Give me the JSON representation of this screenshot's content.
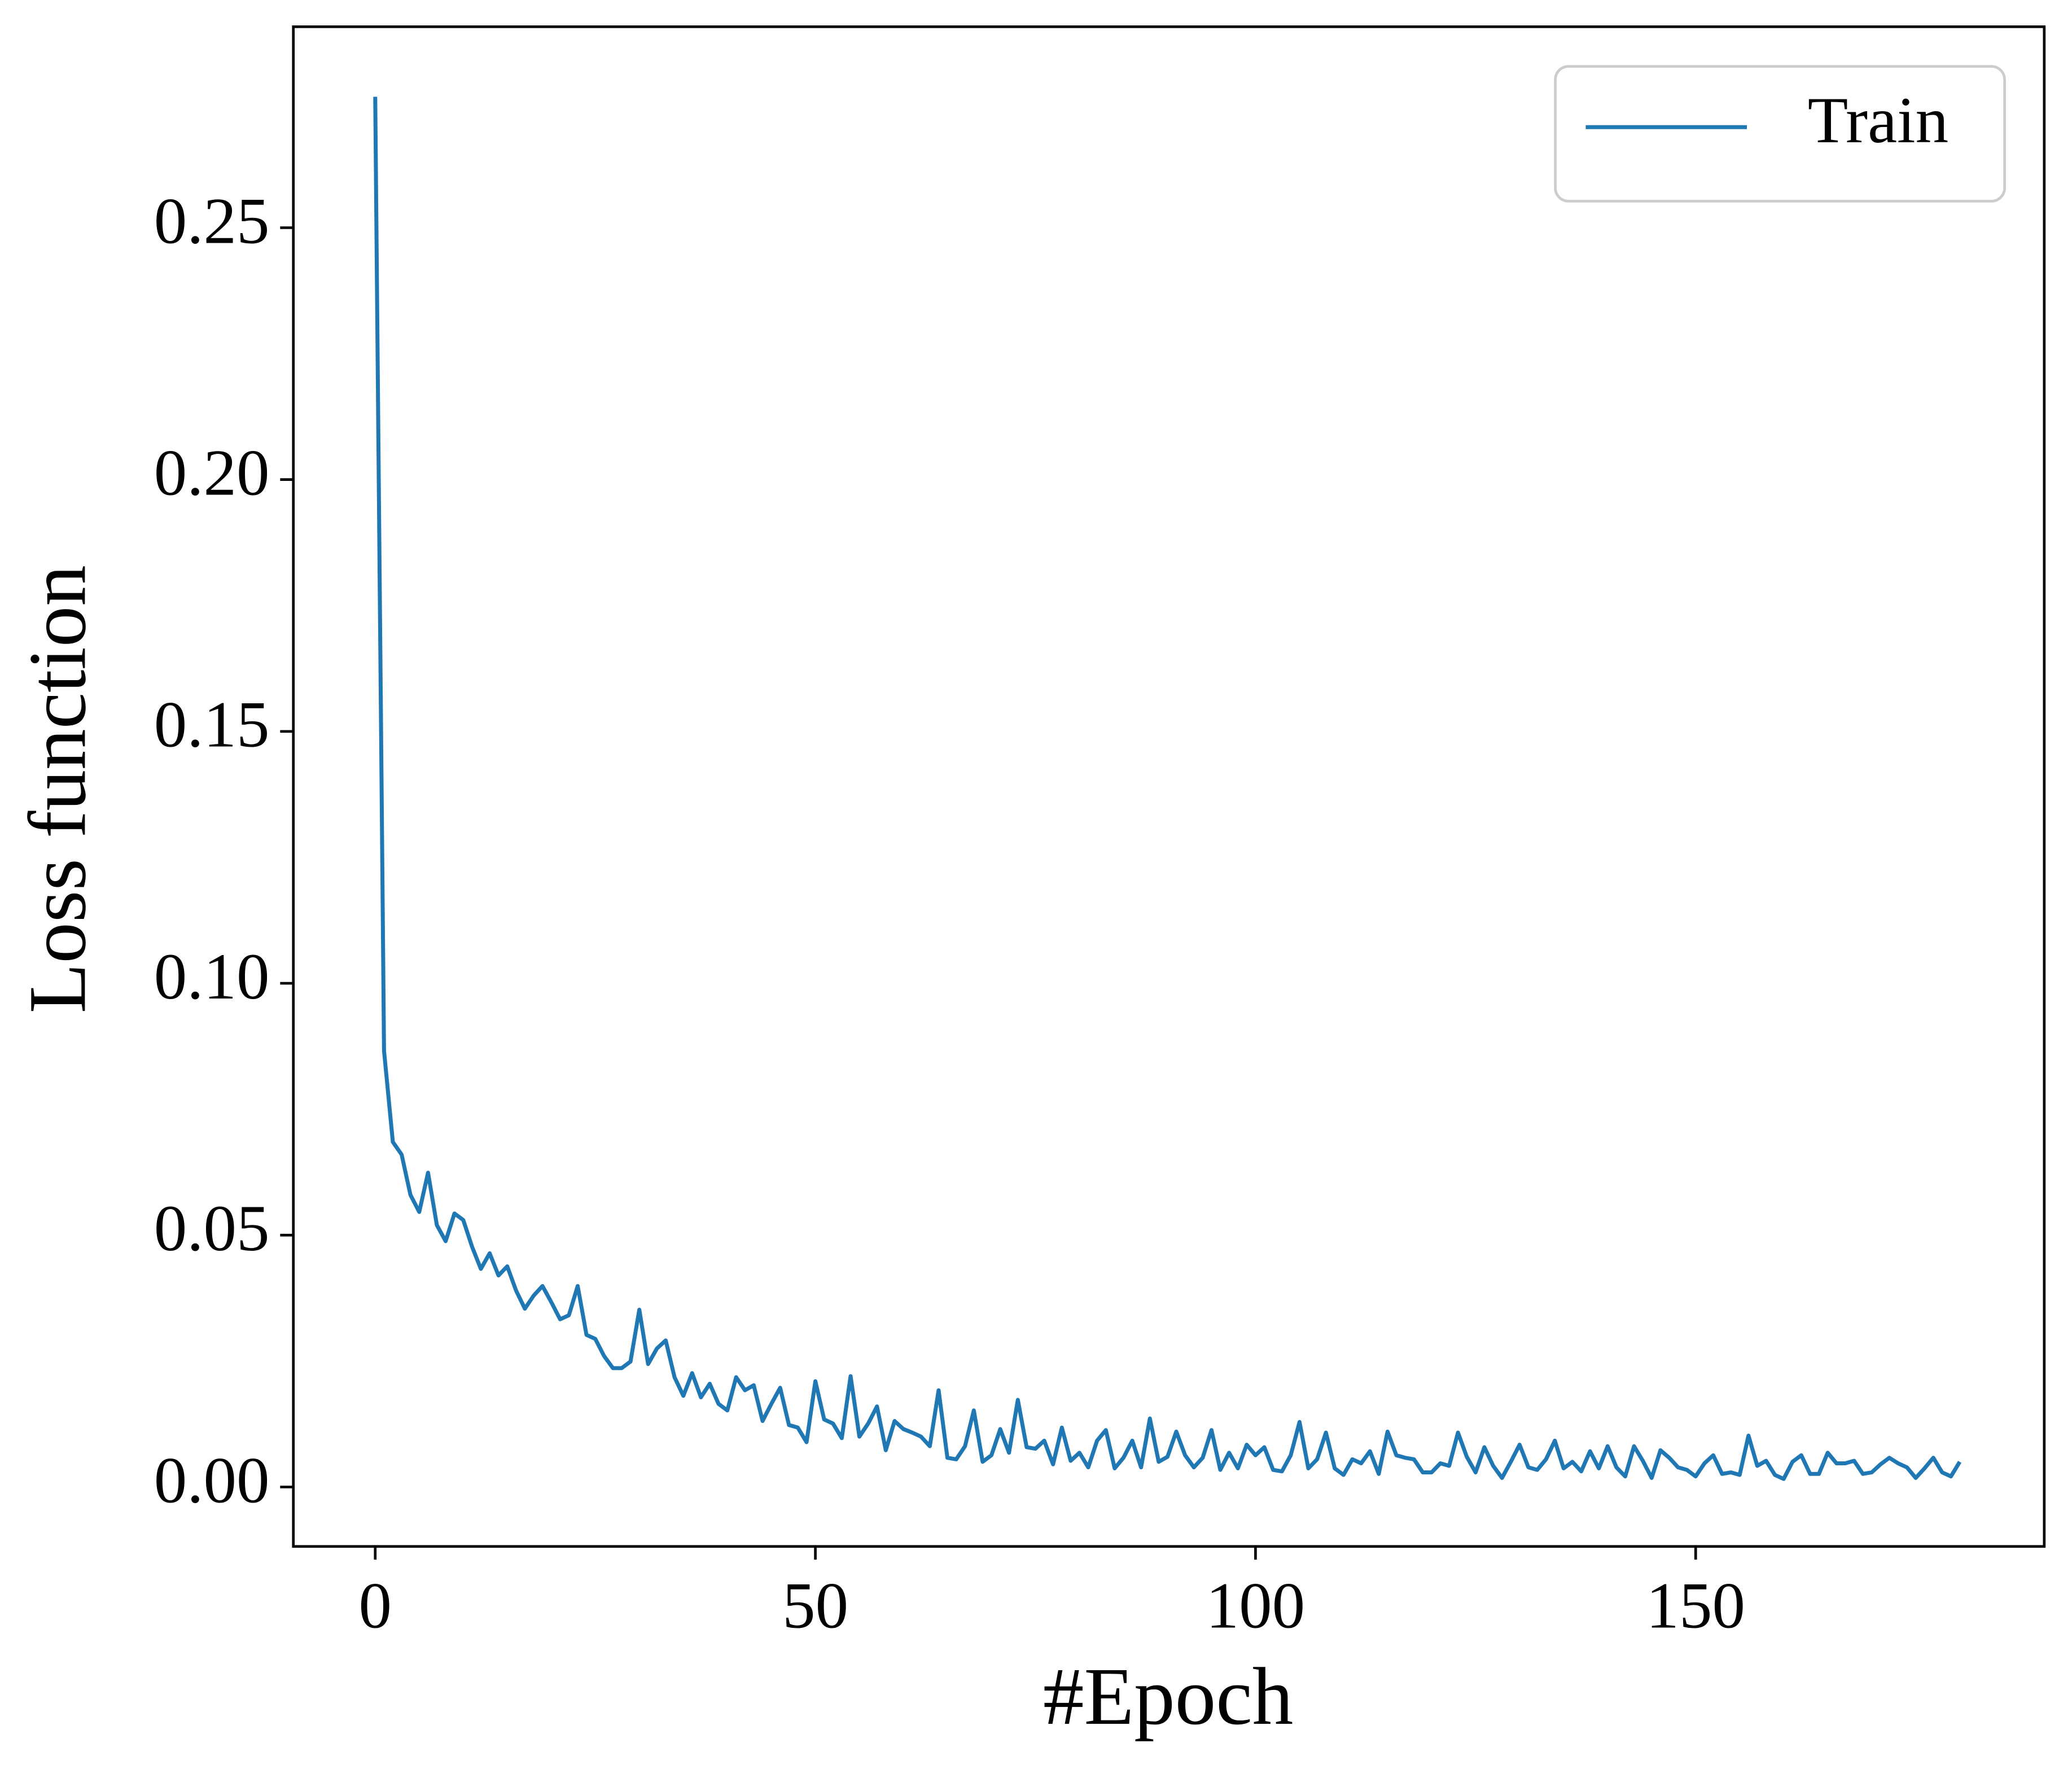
{
  "chart_data": {
    "type": "line",
    "xlabel": "#Epoch",
    "ylabel": "Loss function",
    "x": [
      0,
      1,
      2,
      3,
      4,
      5,
      6,
      7,
      8,
      9,
      10,
      11,
      12,
      13,
      14,
      15,
      16,
      17,
      18,
      19,
      20,
      21,
      22,
      23,
      24,
      25,
      26,
      27,
      28,
      29,
      30,
      31,
      32,
      33,
      34,
      35,
      36,
      37,
      38,
      39,
      40,
      41,
      42,
      43,
      44,
      45,
      46,
      47,
      48,
      49,
      50,
      51,
      52,
      53,
      54,
      55,
      56,
      57,
      58,
      59,
      60,
      61,
      62,
      63,
      64,
      65,
      66,
      67,
      68,
      69,
      70,
      71,
      72,
      73,
      74,
      75,
      76,
      77,
      78,
      79,
      80,
      81,
      82,
      83,
      84,
      85,
      86,
      87,
      88,
      89,
      90,
      91,
      92,
      93,
      94,
      95,
      96,
      97,
      98,
      99,
      100,
      101,
      102,
      103,
      104,
      105,
      106,
      107,
      108,
      109,
      110,
      111,
      112,
      113,
      114,
      115,
      116,
      117,
      118,
      119,
      120,
      121,
      122,
      123,
      124,
      125,
      126,
      127,
      128,
      129,
      130,
      131,
      132,
      133,
      134,
      135,
      136,
      137,
      138,
      139,
      140,
      141,
      142,
      143,
      144,
      145,
      146,
      147,
      148,
      149,
      150,
      151,
      152,
      153,
      154,
      155,
      156,
      157,
      158,
      159,
      160,
      161,
      162,
      163,
      164,
      165,
      166,
      167,
      168,
      169,
      170,
      171,
      172,
      173,
      174,
      175,
      176,
      177,
      178,
      179,
      180
    ],
    "series": [
      {
        "name": "Train",
        "color": "#1f77b4",
        "values": [
          0.276,
          0.0866,
          0.0685,
          0.066,
          0.058,
          0.0546,
          0.0624,
          0.052,
          0.0488,
          0.0543,
          0.053,
          0.0477,
          0.0433,
          0.0464,
          0.042,
          0.0438,
          0.039,
          0.0354,
          0.038,
          0.0399,
          0.0367,
          0.0333,
          0.0341,
          0.0399,
          0.0302,
          0.0294,
          0.026,
          0.0236,
          0.0236,
          0.0249,
          0.0352,
          0.0244,
          0.0275,
          0.0291,
          0.0218,
          0.0181,
          0.0226,
          0.0178,
          0.0205,
          0.0165,
          0.0152,
          0.0218,
          0.0192,
          0.0202,
          0.0131,
          0.0165,
          0.0197,
          0.0123,
          0.0118,
          0.0089,
          0.021,
          0.0134,
          0.0126,
          0.0097,
          0.022,
          0.01,
          0.0126,
          0.016,
          0.0073,
          0.0131,
          0.0115,
          0.0108,
          0.01,
          0.0081,
          0.0192,
          0.0058,
          0.0055,
          0.0081,
          0.0152,
          0.005,
          0.0063,
          0.0115,
          0.0068,
          0.0173,
          0.0079,
          0.0076,
          0.0092,
          0.0045,
          0.0118,
          0.0052,
          0.0068,
          0.0039,
          0.0092,
          0.0113,
          0.0037,
          0.0058,
          0.0092,
          0.0039,
          0.0136,
          0.005,
          0.006,
          0.011,
          0.0063,
          0.0039,
          0.0058,
          0.0113,
          0.0034,
          0.0068,
          0.0037,
          0.0084,
          0.0063,
          0.0079,
          0.0034,
          0.0031,
          0.0063,
          0.0129,
          0.0037,
          0.0055,
          0.0108,
          0.0037,
          0.0024,
          0.0055,
          0.0047,
          0.0071,
          0.0026,
          0.011,
          0.0063,
          0.0058,
          0.0055,
          0.0029,
          0.0029,
          0.0047,
          0.0042,
          0.0108,
          0.006,
          0.0029,
          0.0079,
          0.0042,
          0.0018,
          0.005,
          0.0084,
          0.0039,
          0.0034,
          0.0055,
          0.0092,
          0.0037,
          0.005,
          0.0031,
          0.0071,
          0.0037,
          0.0081,
          0.0039,
          0.0021,
          0.0081,
          0.0052,
          0.0018,
          0.0073,
          0.0058,
          0.0039,
          0.0034,
          0.0021,
          0.0047,
          0.0063,
          0.0026,
          0.0029,
          0.0024,
          0.0102,
          0.0042,
          0.0052,
          0.0024,
          0.0016,
          0.005,
          0.0063,
          0.0026,
          0.0026,
          0.0068,
          0.0047,
          0.0047,
          0.0052,
          0.0026,
          0.0029,
          0.0045,
          0.0058,
          0.0047,
          0.0039,
          0.0018,
          0.0037,
          0.0058,
          0.0029,
          0.0021,
          0.005
        ]
      }
    ],
    "xlim": [
      -9.3,
      189.6
    ],
    "xticks": [
      0,
      50,
      100,
      150
    ],
    "ylim": [
      -0.0118,
      0.2899
    ],
    "yticks": [
      {
        "value": 0,
        "label": "0.00"
      },
      {
        "value": 0.05,
        "label": "0.05"
      },
      {
        "value": 0.1,
        "label": "0.10"
      },
      {
        "value": 0.15,
        "label": "0.15"
      },
      {
        "value": 0.2,
        "label": "0.20"
      },
      {
        "value": 0.25,
        "label": "0.25"
      }
    ],
    "legend": "upper right"
  }
}
